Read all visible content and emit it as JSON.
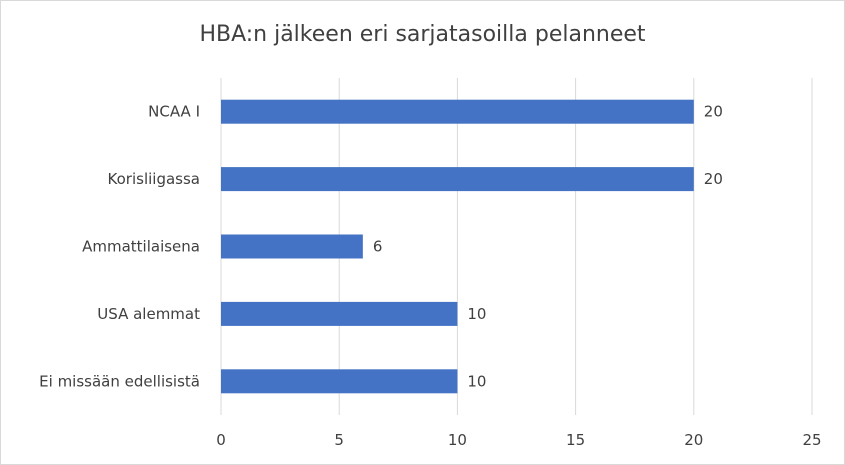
{
  "chart_data": {
    "type": "bar",
    "orientation": "horizontal",
    "title": "HBA:n jälkeen eri sarjatasoilla pelanneet",
    "categories": [
      "NCAA I",
      "Korisliigassa",
      "Ammattilaisena",
      "USA alemmat",
      "Ei missään edellisistä"
    ],
    "values": [
      20,
      20,
      6,
      10,
      10
    ],
    "xlim": [
      0,
      25
    ],
    "xticks": [
      "0",
      "5",
      "10",
      "15",
      "20",
      "25"
    ],
    "grid": true,
    "color": "#4472c4"
  }
}
